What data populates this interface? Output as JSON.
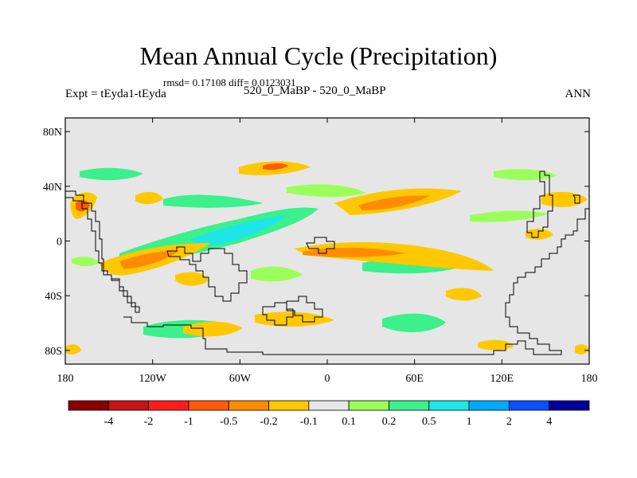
{
  "title": "Mean Annual Cycle (Precipitation)",
  "stats": "rmsd= 0.17108 diff= 0.0123031",
  "left_label": "Expt = tEyda1-tEyda",
  "center_label": "520_0_MaBP - 520_0_MaBP",
  "right_label": "ANN",
  "map": {
    "background_color": "#e6e6e6",
    "lat_ticks": [
      {
        "label": "80N",
        "lat": 80
      },
      {
        "label": "40N",
        "lat": 40
      },
      {
        "label": "0",
        "lat": 0
      },
      {
        "label": "40S",
        "lat": -40
      },
      {
        "label": "80S",
        "lat": -80
      }
    ],
    "lon_ticks": [
      {
        "label": "180",
        "lon": -180
      },
      {
        "label": "120W",
        "lon": -120
      },
      {
        "label": "60W",
        "lon": -60
      },
      {
        "label": "0",
        "lon": 0
      },
      {
        "label": "60E",
        "lon": 60
      },
      {
        "label": "120E",
        "lon": 120
      },
      {
        "label": "180",
        "lon": 180
      }
    ]
  },
  "colorbar": {
    "colors": [
      "#8b0000",
      "#c81414",
      "#ff1e1e",
      "#ff5a0a",
      "#ff8c00",
      "#ffc800",
      "#e6e6e6",
      "#9bff5a",
      "#3cf08c",
      "#1ee6e6",
      "#00aaff",
      "#0a50ff",
      "#00009b"
    ],
    "labels": [
      "-4",
      "-2",
      "-1",
      "-0.5",
      "-0.2",
      "-0.1",
      "0.1",
      "0.2",
      "0.5",
      "1",
      "2",
      "4"
    ]
  }
}
